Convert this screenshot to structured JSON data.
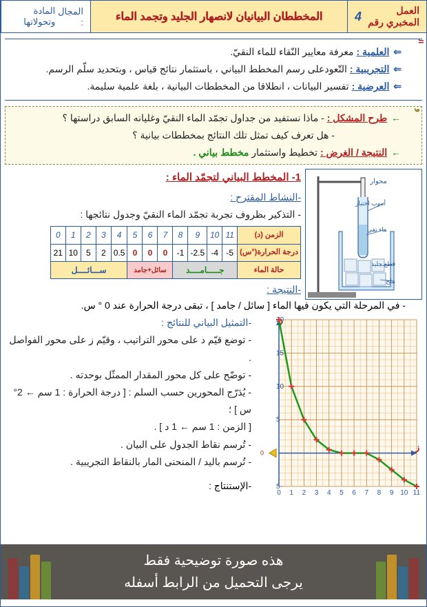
{
  "header": {
    "lab_label": "العمل المخبري رقم",
    "lab_num": "4",
    "title": "المخططان البيانيان لانصهار الجليد وتجمد الماء",
    "domain_label": "المجال :",
    "domain_value": "المادة وتحولاتها"
  },
  "competences": {
    "tab_text": "الكفاءات",
    "items": [
      {
        "label": "العلمية :",
        "text": "معرفة معايير النّقاء للماء النقيّ."
      },
      {
        "label": "التجريبية :",
        "text": "التّعودعلى رسم المخطط البياني ، باستثمار نتائج قياس ، وبتحديد سلّم الرسم."
      },
      {
        "label": "العرضية :",
        "text": "تفسير البيانات ، انطلاقا من المخططات البيانية ، بلغة علمية سليمة."
      }
    ]
  },
  "problem": {
    "tab_text": "وضعية",
    "line1_label": "طرح المشكل :",
    "line1_text": "- ماذا نستفيد من جداول تجمّد الماء النقيّ وغليانه السابق دراستها ؟",
    "line2_text": "- هل تعرف كيف تمثل تلك النتائج بمخططات بيانية ؟",
    "line3_label": "النتيجة / الغرض :",
    "line3_text": "تخطيط واستثمار",
    "line3_green": "مخطط بياني ."
  },
  "section1": {
    "title": "1- المخطط البياني لتجمّد الماء :",
    "activity_label": "-النشاط المقترح :",
    "activity_text": "- التذكير بظروف تجربة تجمّد الماء النقيّ وجدول نتائجها :",
    "table": {
      "time_label": "الزمن (د)",
      "temp_label": "درجة الحرارة(°س)",
      "state_label": "حالة الماء",
      "times": [
        "0",
        "1",
        "2",
        "3",
        "4",
        "5",
        "6",
        "7",
        "8",
        "9",
        "10",
        "11"
      ],
      "temps": [
        "21",
        "10",
        "5",
        "2",
        "0.5",
        "0",
        "0",
        "0",
        "-1",
        "-2.5",
        "-4",
        "-5"
      ],
      "red_idx": [
        5,
        6,
        7
      ],
      "state_liquid": "ســـائــــل",
      "state_mix": "سائل+جامد",
      "state_solid": "جـــــامــــد"
    },
    "result_label": "-النتيجة :",
    "result_text": "- في المرحلة التي يكون فيها الماء [ سائل / جامد ] ، تبقى درجة الحرارة عند 0 ° س.",
    "graph_label": "-التمثيل البياني للنتائج :",
    "graph_steps": [
      "- توضع قيّم د على محور التراتيب ، وقيّم ز على محور الفواصل .",
      "- توضّح على كل محور المقدار الممثّل بوحدته .",
      "- يُدَرّج المحورين حسب السلم : [ درجة الحرارة : 1 سم ← 2° س ] ؛",
      "[ الزمن : 1 سم ← 1 د ] .",
      "- تُرسم نقاط الجدول على البيان .",
      "- تُرسم باليد / المنحنى المار بالنقاط التجريبية ."
    ],
    "conclusion_label": "-الإستنتاج :"
  },
  "chart": {
    "xlim": [
      0,
      11
    ],
    "ylim": [
      -5,
      20
    ],
    "xticks": [
      0,
      1,
      2,
      3,
      4,
      5,
      6,
      7,
      8,
      9,
      10,
      11
    ],
    "yticks": [
      -5,
      0,
      5,
      10,
      15,
      20
    ],
    "xlabel": "ز",
    "ylabel": "د",
    "points": [
      [
        0,
        21
      ],
      [
        1,
        10
      ],
      [
        2,
        5
      ],
      [
        3,
        2
      ],
      [
        4,
        0.5
      ],
      [
        5,
        0
      ],
      [
        6,
        0
      ],
      [
        7,
        0
      ],
      [
        8,
        -1
      ],
      [
        9,
        -2.5
      ],
      [
        10,
        -4
      ],
      [
        11,
        -5
      ]
    ],
    "line_color": "#1a9a1a",
    "point_color": "#e03030",
    "grid_minor": "#e8b878",
    "grid_major": "#c08840",
    "axis_color": "#2a5aa0",
    "bg": "#fef8ec"
  },
  "apparatus": {
    "labels": {
      "axis": "محوار",
      "tube": "أنبوب اختبار",
      "water": "ماء نقي",
      "ice": "قطع جليد",
      "salt": "ملح"
    }
  },
  "overlay": {
    "line1": "هذه صورة توضيحية فقط",
    "line2": "يرجى التحميل من الرابط أسفله"
  },
  "colors": {
    "blue": "#2a5aa0",
    "red": "#b02020",
    "green": "#1a8a1a",
    "cream": "#fde9a8"
  }
}
